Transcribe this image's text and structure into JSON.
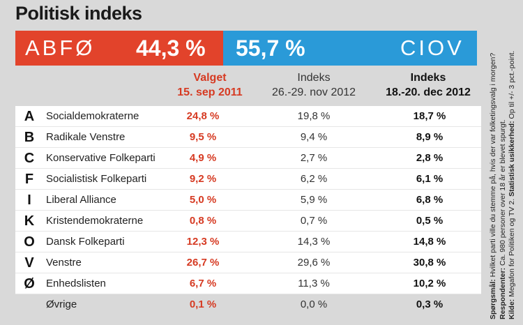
{
  "title": "Politisk indeks",
  "bloc_left": {
    "name": "ABFØ",
    "percent": "44,3 %",
    "color": "#e2432b"
  },
  "bloc_right": {
    "name": "CIOV",
    "percent": "55,7  %",
    "color": "#2a9ad8"
  },
  "columns": {
    "valget": {
      "line1": "Valget",
      "line2": "15. sep 2011"
    },
    "nov": {
      "line1": "Indeks",
      "line2": "26.-29. nov 2012"
    },
    "dec": {
      "line1": "Indeks",
      "line2": "18.-20. dec 2012"
    }
  },
  "chart_data": {
    "type": "table",
    "title": "Politisk indeks",
    "columns": [
      "Valget 15. sep 2011",
      "Indeks 26.-29. nov 2012",
      "Indeks 18.-20. dec 2012"
    ],
    "rows": [
      {
        "letter": "A",
        "party": "Socialdemokraterne",
        "valget": "24,8 %",
        "nov": "19,8 %",
        "dec": "18,7 %"
      },
      {
        "letter": "B",
        "party": "Radikale Venstre",
        "valget": "9,5 %",
        "nov": "9,4 %",
        "dec": "8,9 %"
      },
      {
        "letter": "C",
        "party": "Konservative Folkeparti",
        "valget": "4,9 %",
        "nov": "2,7 %",
        "dec": "2,8 %"
      },
      {
        "letter": "F",
        "party": "Socialistisk Folkeparti",
        "valget": "9,2 %",
        "nov": "6,2 %",
        "dec": "6,1 %"
      },
      {
        "letter": "I",
        "party": "Liberal Alliance",
        "valget": "5,0 %",
        "nov": "5,9 %",
        "dec": "6,8 %"
      },
      {
        "letter": "K",
        "party": "Kristendemokraterne",
        "valget": "0,8 %",
        "nov": "0,7 %",
        "dec": "0,5 %"
      },
      {
        "letter": "O",
        "party": "Dansk Folkeparti",
        "valget": "12,3 %",
        "nov": "14,3 %",
        "dec": "14,8 %"
      },
      {
        "letter": "V",
        "party": "Venstre",
        "valget": "26,7 %",
        "nov": "29,6 %",
        "dec": "30,8 %"
      },
      {
        "letter": "Ø",
        "party": "Enhedslisten",
        "valget": "6,7 %",
        "nov": "11,3 %",
        "dec": "10,2 %"
      },
      {
        "letter": "",
        "party": "Øvrige",
        "valget": "0,1 %",
        "nov": "0,0 %",
        "dec": "0,3 %"
      }
    ]
  },
  "footnote": {
    "q_label": "Spørgsmål:",
    "q_text": "Hvilket parti ville du stemme på, hvis der var folketingsvalg i morgen?",
    "r_label": "Respondenter:",
    "r_text": "Ca. 980 personer over 18 år er blevet spurgt.",
    "k_label": "Kilde:",
    "k_text": "Megafon for Politiken og TV 2.",
    "s_label": "Statistisk usikkerhed:",
    "s_text": "Op til +/- 3 pct.-point."
  }
}
